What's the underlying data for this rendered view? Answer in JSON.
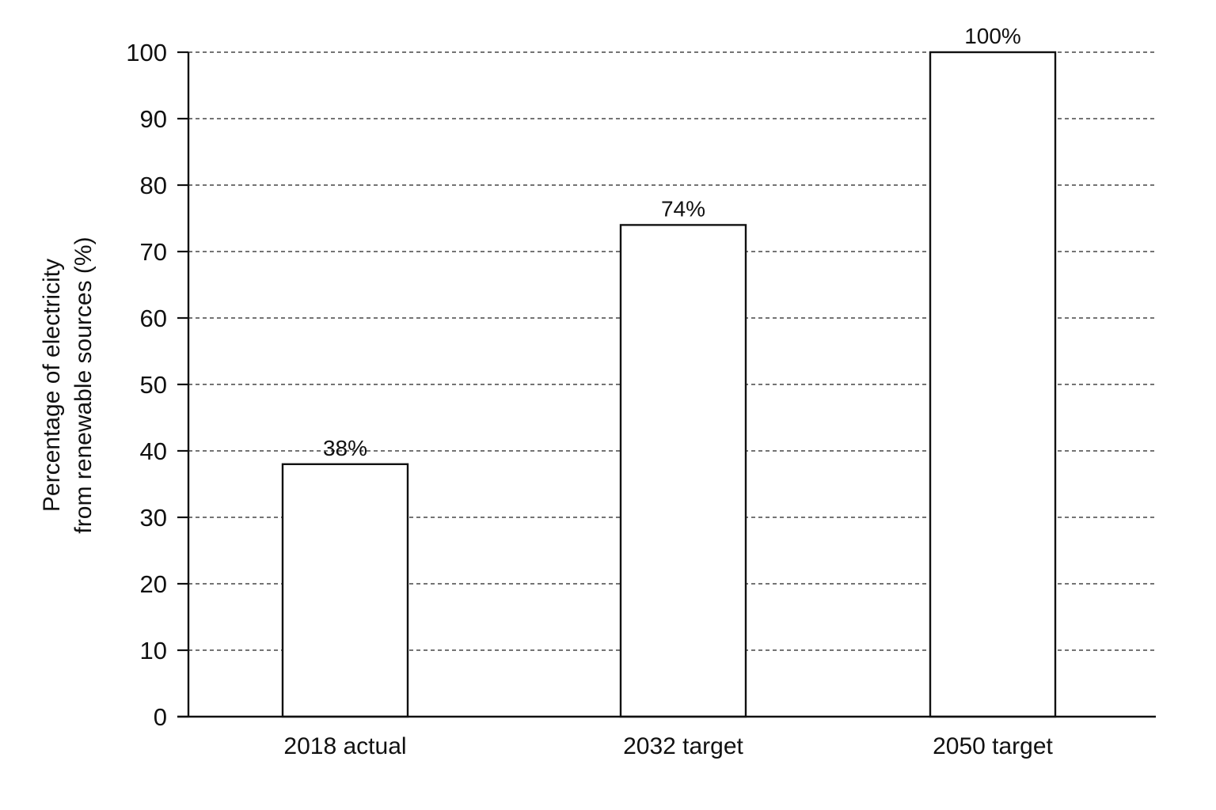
{
  "chart_data": {
    "type": "bar",
    "title": "",
    "xlabel": "",
    "ylabel": [
      "Percentage of electricity",
      "from renewable sources (%)"
    ],
    "categories": [
      "2018 actual",
      "2032 target",
      "2050 target"
    ],
    "values": [
      38,
      74,
      100
    ],
    "data_labels": [
      "38%",
      "74%",
      "100%"
    ],
    "ylim": [
      0,
      100
    ],
    "yticks": [
      0,
      10,
      20,
      30,
      40,
      50,
      60,
      70,
      80,
      90,
      100
    ],
    "grid": "horizontal dashed",
    "legend": "none",
    "colors": {
      "bar_fill": "#ffffff",
      "bar_stroke": "#111111",
      "axis": "#111111",
      "grid": "#222222"
    }
  }
}
